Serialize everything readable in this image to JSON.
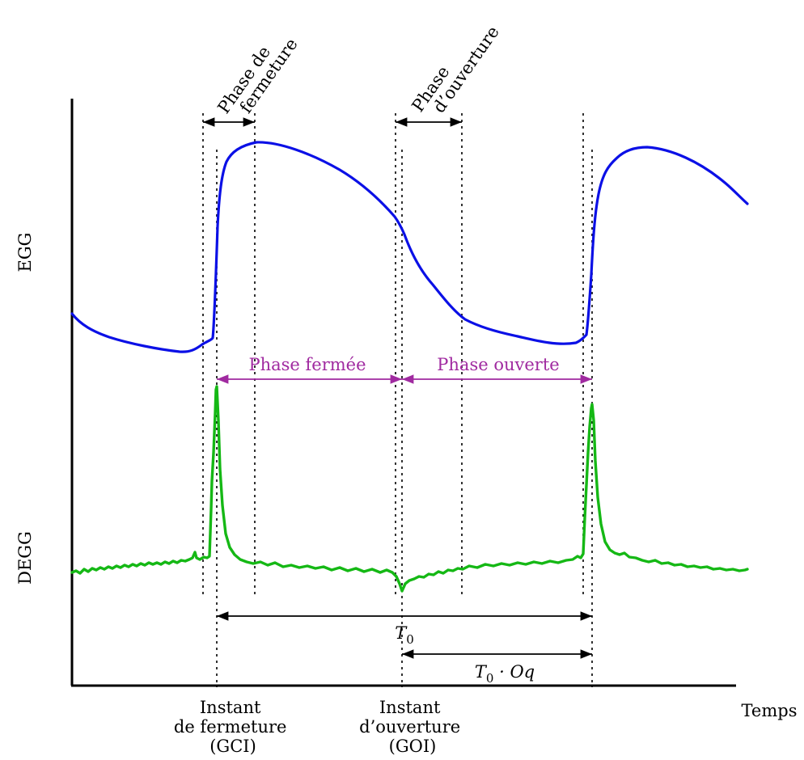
{
  "axes": {
    "y_label_top": "EGG",
    "y_label_bottom": "DEGG",
    "x_label": "Temps"
  },
  "phases_top": {
    "closing_line1": "Phase de",
    "closing_line2": "fermeture",
    "opening_line1": "Phase",
    "opening_line2": "d’ouverture"
  },
  "phases_mid": {
    "closed": "Phase fermée",
    "open": "Phase ouverte"
  },
  "periods": {
    "t0": "T",
    "t0_sub": "0",
    "t0oq": "T",
    "t0oq_sub": "0",
    "t0oq_suffix": " · Oq"
  },
  "instants": {
    "gci_line1": "Instant",
    "gci_line2": "de fermeture",
    "gci_line3": "(GCI)",
    "goi_line1": "Instant",
    "goi_line2": "d’ouverture",
    "goi_line3": "(GOI)"
  },
  "colors": {
    "egg": "#0b10e6",
    "degg": "#15b815",
    "phase": "#a02aa0",
    "axis": "#000000"
  }
}
